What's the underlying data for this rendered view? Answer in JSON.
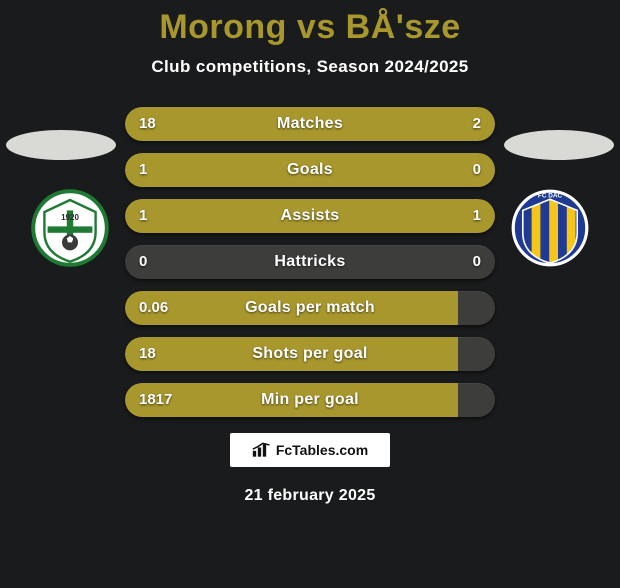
{
  "title_color": "#a8972d",
  "subtitle_color": "#ffffff",
  "date_color": "#ffffff",
  "background_color": "#1a1b1c",
  "player_left": "Morong",
  "player_right": "BÅ'sze",
  "subtitle": "Club competitions, Season 2024/2025",
  "date": "21 february 2025",
  "logo_text": "FcTables.com",
  "bar_track_color": "#3d3d3c",
  "left_fill_color": "#a8972d",
  "right_fill_color": "#a8972d",
  "bar_label_color": "#ffffff",
  "bar_value_color": "#ffffff",
  "stats": [
    {
      "label": "Matches",
      "left_val": "18",
      "right_val": "2",
      "left_pct": 90,
      "right_pct": 10
    },
    {
      "label": "Goals",
      "left_val": "1",
      "right_val": "0",
      "left_pct": 100,
      "right_pct": 0
    },
    {
      "label": "Assists",
      "left_val": "1",
      "right_val": "1",
      "left_pct": 50,
      "right_pct": 50
    },
    {
      "label": "Hattricks",
      "left_val": "0",
      "right_val": "0",
      "left_pct": 0,
      "right_pct": 0
    },
    {
      "label": "Goals per match",
      "left_val": "0.06",
      "right_val": "",
      "left_pct": 90,
      "right_pct": 0
    },
    {
      "label": "Shots per goal",
      "left_val": "18",
      "right_val": "",
      "left_pct": 90,
      "right_pct": 0
    },
    {
      "label": "Min per goal",
      "left_val": "1817",
      "right_val": "",
      "left_pct": 90,
      "right_pct": 0
    }
  ],
  "head_ellipse_color_left": "#d9dad6",
  "head_ellipse_color_right": "#d9dad6",
  "badge_left": {
    "bg": "#ffffff",
    "trim": "#1f7a33",
    "accent": "#3a3a3a",
    "year": "1920"
  },
  "badge_right": {
    "stripes": [
      "#f5c518",
      "#1f3a93"
    ],
    "ring": "#ffffff"
  }
}
